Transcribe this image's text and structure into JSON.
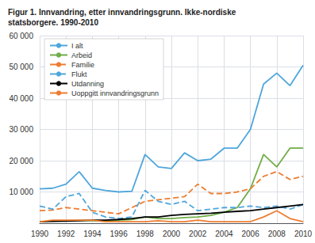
{
  "chart_data": {
    "type": "line",
    "title": "Figur 1. Innvandring, etter innvandringsgrunn. Ikke-nordiske\nstatsborgere. 1990-2010",
    "x": [
      1990,
      1991,
      1992,
      1993,
      1994,
      1995,
      1996,
      1997,
      1998,
      1999,
      2000,
      2001,
      2002,
      2003,
      2004,
      2005,
      2006,
      2007,
      2008,
      2009,
      2010
    ],
    "series": [
      {
        "name": "I alt",
        "color": "#4ea6dc",
        "line_style": "solid",
        "values": [
          11000,
          11200,
          12500,
          16500,
          11200,
          10500,
          10000,
          10200,
          22000,
          18000,
          17500,
          22500,
          20000,
          20500,
          24000,
          24000,
          30000,
          44500,
          48000,
          44000,
          50500
        ]
      },
      {
        "name": "Arbeid",
        "color": "#70ad47",
        "line_style": "solid",
        "values": [
          500,
          700,
          800,
          900,
          800,
          700,
          1000,
          1200,
          2000,
          1500,
          1500,
          1800,
          2000,
          2500,
          3500,
          5000,
          11000,
          22000,
          18000,
          24000,
          24000
        ]
      },
      {
        "name": "Familie",
        "color": "#ed7d31",
        "line_style": "dashed",
        "values": [
          4000,
          4200,
          5000,
          4500,
          4000,
          3500,
          3000,
          5000,
          7000,
          7500,
          8000,
          8500,
          12500,
          9500,
          9500,
          10000,
          11000,
          15000,
          16500,
          14000,
          15000
        ]
      },
      {
        "name": "Flukt",
        "color": "#4ea6dc",
        "line_style": "dashed",
        "values": [
          5500,
          4500,
          8500,
          9500,
          3500,
          2000,
          1500,
          2000,
          10500,
          7000,
          6000,
          7000,
          4000,
          4500,
          5000,
          5000,
          5500,
          5000,
          5500,
          4500,
          6000
        ]
      },
      {
        "name": "Utdanning",
        "color": "#000000",
        "line_style": "solid",
        "values": [
          500,
          600,
          700,
          800,
          1000,
          1000,
          1200,
          1500,
          2000,
          2000,
          2500,
          2800,
          3000,
          3200,
          3500,
          3800,
          4000,
          4500,
          5000,
          5500,
          6000
        ]
      },
      {
        "name": "Uoppgitt innvandringsgrunn",
        "color": "#ed7d31",
        "line_style": "solid",
        "values": [
          500,
          1000,
          1000,
          1000,
          1000,
          500,
          500,
          500,
          500,
          800,
          500,
          500,
          1000,
          500,
          500,
          500,
          500,
          2000,
          4000,
          1500,
          500
        ]
      }
    ],
    "xlim": [
      1990,
      2010
    ],
    "xticks": [
      1990,
      1992,
      1994,
      1996,
      1998,
      2000,
      2002,
      2004,
      2006,
      2008,
      2010
    ],
    "ylim": [
      0,
      60000
    ],
    "yticks": [
      {
        "value": 0,
        "label": ""
      },
      {
        "value": 10000,
        "label": "10 000"
      },
      {
        "value": 20000,
        "label": "20 000"
      },
      {
        "value": 30000,
        "label": "30 000"
      },
      {
        "value": 40000,
        "label": "40 000"
      },
      {
        "value": 50000,
        "label": "50 000"
      },
      {
        "value": 60000,
        "label": "60 000"
      }
    ],
    "grid": true,
    "legend": "upper left"
  }
}
